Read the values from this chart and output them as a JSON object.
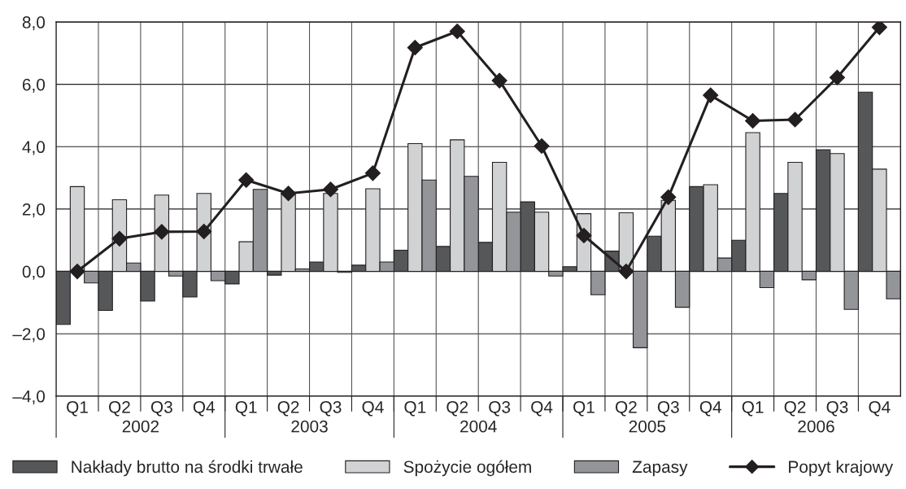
{
  "chart_data": {
    "type": "bar",
    "categories": [
      "Q1",
      "Q2",
      "Q3",
      "Q4",
      "Q1",
      "Q2",
      "Q3",
      "Q4",
      "Q1",
      "Q2",
      "Q3",
      "Q4",
      "Q1",
      "Q2",
      "Q3",
      "Q4",
      "Q1",
      "Q2",
      "Q3",
      "Q4"
    ],
    "series": [
      {
        "name": "Nakłady brutto na środki trwałe",
        "color": "#555759",
        "values": [
          -1.7,
          -1.25,
          -0.95,
          -0.82,
          -0.4,
          -0.12,
          0.3,
          0.2,
          0.68,
          0.8,
          0.93,
          2.23,
          0.15,
          0.65,
          1.13,
          2.72,
          1.0,
          2.5,
          3.9,
          5.75
        ]
      },
      {
        "name": "Spożycie ogółem",
        "color": "#d1d2d4",
        "values": [
          2.72,
          2.3,
          2.45,
          2.5,
          0.95,
          2.5,
          2.5,
          2.65,
          4.1,
          4.22,
          3.5,
          1.9,
          1.85,
          1.88,
          2.28,
          2.78,
          4.45,
          3.5,
          3.78,
          3.28
        ]
      },
      {
        "name": "Zapasy",
        "color": "#939598",
        "values": [
          -0.37,
          0.27,
          -0.15,
          -0.3,
          2.63,
          0.08,
          -0.03,
          0.3,
          2.93,
          3.05,
          1.9,
          -0.15,
          -0.75,
          -2.45,
          -1.15,
          0.43,
          -0.52,
          -0.27,
          -1.22,
          -0.88
        ]
      },
      {
        "name": "Popyt krajowy",
        "type": "line",
        "color": "#231f20",
        "marker": "diamond",
        "values": [
          0.0,
          1.05,
          1.27,
          1.28,
          2.93,
          2.5,
          2.63,
          3.15,
          7.18,
          7.7,
          6.12,
          4.02,
          1.15,
          0.0,
          2.38,
          5.65,
          4.83,
          4.87,
          6.22,
          7.83
        ]
      }
    ],
    "annotations": [
      "2002",
      "2003",
      "2004",
      "2005",
      "2006"
    ],
    "ylim": [
      -4,
      8
    ],
    "yticks": [
      {
        "value": -4,
        "label": "–4,0"
      },
      {
        "value": -2,
        "label": "–2,0"
      },
      {
        "value": 0,
        "label": "0,0"
      },
      {
        "value": 2,
        "label": "2,0"
      },
      {
        "value": 4,
        "label": "4,0"
      },
      {
        "value": 6,
        "label": "6,0"
      },
      {
        "value": 8,
        "label": "8,0"
      }
    ],
    "grid": true,
    "legend": "bottom"
  }
}
